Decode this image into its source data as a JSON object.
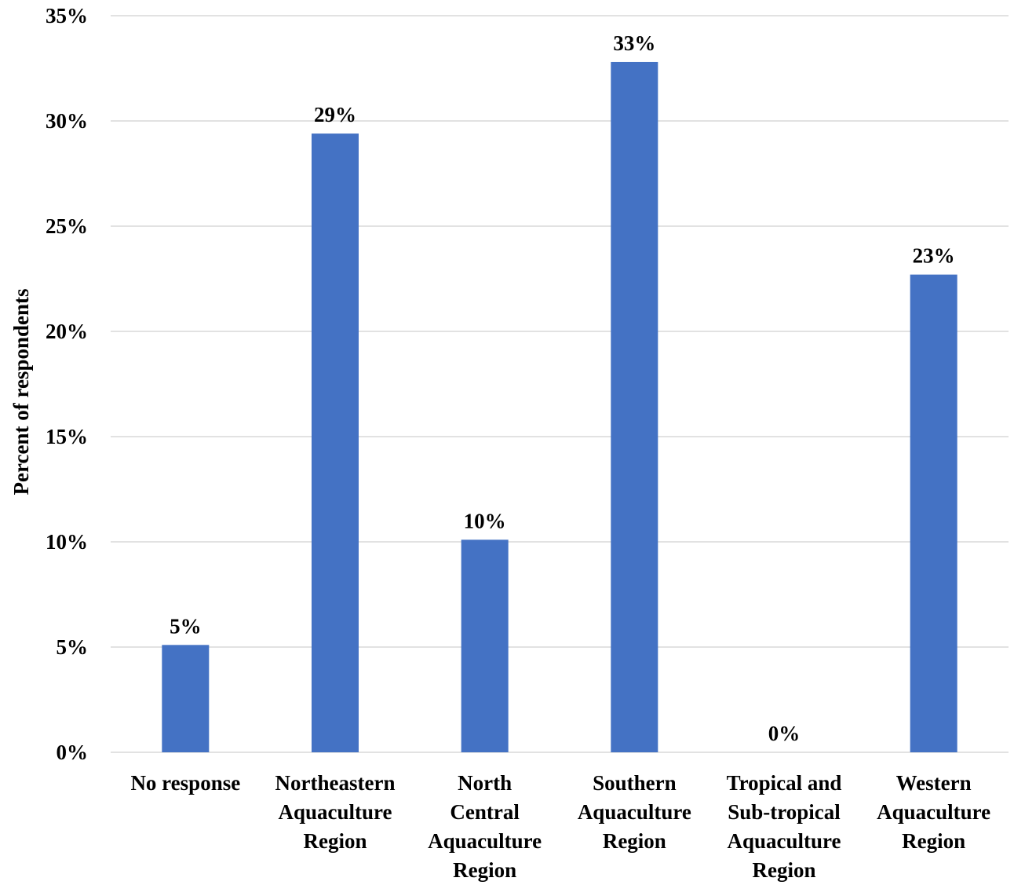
{
  "chart_data": {
    "type": "bar",
    "categories": [
      [
        "No response"
      ],
      [
        "Northeastern",
        "Aquaculture",
        "Region"
      ],
      [
        "North",
        "Central",
        "Aquaculture",
        "Region"
      ],
      [
        "Southern",
        "Aquaculture",
        "Region"
      ],
      [
        "Tropical and",
        "Sub-tropical",
        "Aquaculture",
        "Region"
      ],
      [
        "Western",
        "Aquaculture",
        "Region"
      ]
    ],
    "values": [
      5.1,
      29.4,
      10.1,
      32.8,
      0,
      22.7
    ],
    "data_labels": [
      "5%",
      "29%",
      "10%",
      "33%",
      "0%",
      "23%"
    ],
    "ylabel": "Percent of respondents",
    "ylim": [
      0,
      35
    ],
    "yticks": [
      0,
      5,
      10,
      15,
      20,
      25,
      30,
      35
    ],
    "ytick_labels": [
      "0%",
      "5%",
      "10%",
      "15%",
      "20%",
      "25%",
      "30%",
      "35%"
    ],
    "bar_color": "#4472c4",
    "grid": true,
    "legend": "none"
  }
}
